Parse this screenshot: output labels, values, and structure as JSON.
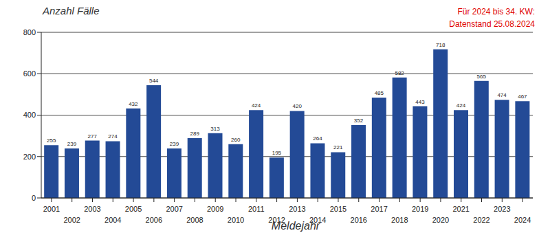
{
  "chart_data": {
    "type": "bar",
    "y_label": "Anzahl Fälle",
    "x_label": "Meldejahr",
    "annotations": [
      "Für 2024 bis 34. KW:",
      "Datenstand 25.08.2024"
    ],
    "categories": [
      "2001",
      "2002",
      "2003",
      "2004",
      "2005",
      "2006",
      "2007",
      "2008",
      "2009",
      "2010",
      "2011",
      "2012",
      "2013",
      "2014",
      "2015",
      "2016",
      "2017",
      "2018",
      "2019",
      "2020",
      "2021",
      "2022",
      "2023",
      "2024"
    ],
    "values": [
      255,
      239,
      277,
      274,
      432,
      544,
      239,
      289,
      313,
      260,
      424,
      195,
      420,
      264,
      221,
      352,
      485,
      582,
      443,
      718,
      424,
      565,
      474,
      467
    ],
    "color": "#234a96",
    "ylim": [
      0,
      800
    ],
    "yticks": [
      0,
      200,
      400,
      600,
      800
    ],
    "grid": true,
    "data_labels": true
  }
}
